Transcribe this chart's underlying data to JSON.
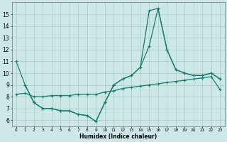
{
  "xlabel": "Humidex (Indice chaleur)",
  "x_ticks": [
    0,
    1,
    2,
    3,
    4,
    5,
    6,
    7,
    8,
    9,
    10,
    11,
    12,
    13,
    14,
    15,
    16,
    17,
    18,
    19,
    20,
    21,
    22,
    23
  ],
  "ylim": [
    5.5,
    16
  ],
  "xlim": [
    -0.5,
    23.5
  ],
  "y_ticks": [
    6,
    7,
    8,
    9,
    10,
    11,
    12,
    13,
    14,
    15
  ],
  "bg_color": "#cce8e6",
  "grid_color": "#aacfcd",
  "line_color": "#1a7a6e",
  "line1_x": [
    0,
    1,
    2,
    3,
    4,
    5,
    6,
    7,
    8,
    9,
    10,
    11,
    12,
    13,
    14,
    15,
    16,
    17,
    18,
    19,
    20,
    21,
    22,
    23
  ],
  "line1_y": [
    11.0,
    9.0,
    7.5,
    7.0,
    7.0,
    6.8,
    6.8,
    6.5,
    6.4,
    5.9,
    7.5,
    9.0,
    9.5,
    9.8,
    10.5,
    15.3,
    15.5,
    12.0,
    10.3,
    10.0,
    9.8,
    9.8,
    10.0,
    9.5
  ],
  "line2_x": [
    0,
    1,
    2,
    3,
    4,
    5,
    6,
    7,
    8,
    9,
    10,
    11,
    12,
    13,
    14,
    15,
    16,
    17,
    18,
    19,
    20,
    21,
    22,
    23
  ],
  "line2_y": [
    8.2,
    8.3,
    8.0,
    8.0,
    8.1,
    8.1,
    8.1,
    8.2,
    8.2,
    8.2,
    8.4,
    8.5,
    8.7,
    8.8,
    8.9,
    9.0,
    9.1,
    9.2,
    9.3,
    9.4,
    9.5,
    9.6,
    9.7,
    8.6
  ],
  "line3_x": [
    1,
    2,
    3,
    4,
    5,
    6,
    7,
    8,
    9,
    10,
    11,
    12,
    13,
    14,
    15,
    16,
    17,
    18,
    19,
    20,
    21,
    22,
    23
  ],
  "line3_y": [
    9.0,
    7.5,
    7.0,
    7.0,
    6.8,
    6.8,
    6.5,
    6.4,
    5.9,
    7.5,
    9.0,
    9.5,
    9.8,
    10.5,
    12.3,
    15.5,
    12.0,
    10.3,
    10.0,
    9.8,
    9.8,
    10.0,
    9.5
  ]
}
